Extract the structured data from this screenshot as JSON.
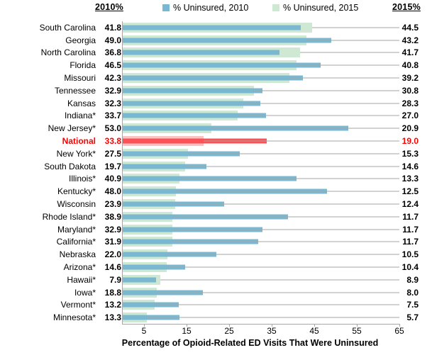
{
  "header": {
    "left_label": "2010%",
    "right_label": "2015%"
  },
  "colors": {
    "bar_2010": "#7AB8D1",
    "bar_2015": "#CFE8D4",
    "national_bar_2010": "#FB5355",
    "national_bar_2015": "#FBC1C3",
    "national_text": "#FF0000",
    "leader_line": "#A6A6A6",
    "axis_line": "#A6A6A6",
    "text": "#000000"
  },
  "chart_data": {
    "type": "bar",
    "orientation": "horizontal",
    "xlabel": "Percentage of Opioid-Related ED Visits That Were Uninsured",
    "xlim": [
      0,
      65
    ],
    "xticks": [
      5,
      15,
      25,
      35,
      45,
      55,
      65
    ],
    "grid": false,
    "legend_position": "top",
    "legend": [
      {
        "label": "% Uninsured, 2010"
      },
      {
        "label": "% Uninsured, 2015"
      }
    ],
    "value_label_columns": {
      "left": "2010 values",
      "right": "2015 values"
    },
    "highlight_category": "National",
    "categories": [
      "South Carolina",
      "Georgia",
      "North Carolina",
      "Florida",
      "Missouri",
      "Tennessee",
      "Kansas",
      "Indiana*",
      "New Jersey*",
      "National",
      "New York*",
      "South Dakota",
      "Illinois*",
      "Kentucky*",
      "Wisconsin",
      "Rhode Island*",
      "Maryland*",
      "California*",
      "Nebraska",
      "Arizona*",
      "Hawaii*",
      "Iowa*",
      "Vermont*",
      "Minnesota*"
    ],
    "series": [
      {
        "name": "% Uninsured, 2010",
        "values": [
          41.8,
          49.0,
          36.8,
          46.5,
          42.3,
          32.9,
          32.3,
          33.7,
          53.0,
          33.8,
          27.5,
          19.7,
          40.9,
          48.0,
          23.9,
          38.9,
          32.9,
          31.9,
          22.0,
          14.6,
          7.9,
          18.8,
          13.2,
          13.3
        ]
      },
      {
        "name": "% Uninsured, 2015",
        "values": [
          44.5,
          43.2,
          41.7,
          40.8,
          39.2,
          30.8,
          28.3,
          27.0,
          20.9,
          19.0,
          15.3,
          14.6,
          13.3,
          12.5,
          12.4,
          11.7,
          11.7,
          11.7,
          10.5,
          10.4,
          8.9,
          8.0,
          7.5,
          5.7
        ]
      }
    ]
  }
}
